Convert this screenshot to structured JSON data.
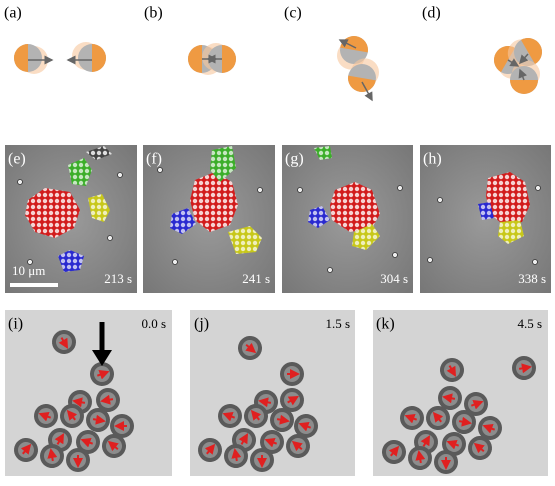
{
  "top_row": {
    "labels": [
      "(a)",
      "(b)",
      "(c)",
      "(d)"
    ]
  },
  "middle_row": {
    "labels": [
      "(e)",
      "(f)",
      "(g)",
      "(h)"
    ],
    "times": [
      "213 s",
      "241 s",
      "304 s",
      "338 s"
    ],
    "scale_bar": "10 μm"
  },
  "bottom_row": {
    "labels": [
      "(i)",
      "(j)",
      "(k)"
    ],
    "times": [
      "0.0 s",
      "1.5 s",
      "4.5 s"
    ]
  }
}
